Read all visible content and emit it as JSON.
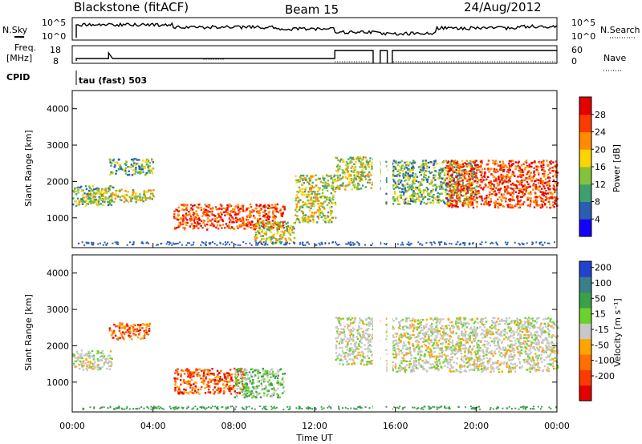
{
  "header": {
    "station": "Blackstone (fitACF)",
    "beam": "Beam 15",
    "date": "24/Aug/2012"
  },
  "params": {
    "nsky_label": "N.Sky",
    "nsearch_label": "N.Search",
    "freq_label_1": "Freq.",
    "freq_label_2": "[MHz]",
    "nave_label": "Nave",
    "cpid_label": "CPID",
    "cpid_value": "tau (fast) 503",
    "noise_ticks_left": [
      "10^5",
      "10^0"
    ],
    "noise_ticks_right": [
      "10^5",
      "10^0"
    ],
    "freq_ticks_left": [
      "18",
      "8"
    ],
    "nave_ticks_right": [
      "60",
      "0"
    ]
  },
  "chart_data": [
    {
      "type": "heatmap",
      "panel": "power",
      "ylabel": "Slant Range [km]",
      "xlabel": "Time UT",
      "x_ticks": [
        "00:00",
        "04:00",
        "08:00",
        "12:00",
        "16:00",
        "20:00",
        "00:00"
      ],
      "x_range_hours": [
        0,
        24
      ],
      "y_ticks": [
        "1000",
        "2000",
        "3000",
        "4000"
      ],
      "y_range_km": [
        180,
        4500
      ],
      "colorbar": {
        "label": "Power [dB]",
        "ticks": [
          "4",
          "8",
          "12",
          "16",
          "20",
          "24",
          "28"
        ],
        "colors": [
          "#1400ff",
          "#2a5fb0",
          "#3f9f6f",
          "#84c23c",
          "#ffd400",
          "#ff8c00",
          "#ff3a00",
          "#e50000"
        ]
      },
      "features": [
        {
          "t": [
            0.0,
            2.0
          ],
          "range_km": [
            1350,
            1900
          ],
          "level": "green"
        },
        {
          "t": [
            0.3,
            1.0
          ],
          "range_km": [
            1450,
            1650
          ],
          "level": "orange"
        },
        {
          "t": [
            1.0,
            4.0
          ],
          "range_km": [
            1450,
            1800
          ],
          "level": "orange"
        },
        {
          "t": [
            1.8,
            4.0
          ],
          "range_km": [
            2200,
            2650
          ],
          "level": "green"
        },
        {
          "t": [
            5.0,
            10.5
          ],
          "range_km": [
            700,
            1400
          ],
          "level": "red"
        },
        {
          "t": [
            9.0,
            11.0
          ],
          "range_km": [
            300,
            900
          ],
          "level": "orange"
        },
        {
          "t": [
            11.0,
            13.0
          ],
          "range_km": [
            900,
            2200
          ],
          "level": "orange"
        },
        {
          "t": [
            13.0,
            15.2
          ],
          "range_km": [
            1800,
            2700
          ],
          "level": "orange"
        },
        {
          "t": [
            15.5,
            20.0
          ],
          "range_km": [
            1400,
            2600
          ],
          "level": "green"
        },
        {
          "t": [
            18.5,
            24.0
          ],
          "range_km": [
            1300,
            2600
          ],
          "level": "red"
        }
      ]
    },
    {
      "type": "heatmap",
      "panel": "velocity",
      "ylabel": "Slant Range [km]",
      "xlabel": "Time UT",
      "x_ticks": [
        "00:00",
        "04:00",
        "08:00",
        "12:00",
        "16:00",
        "20:00",
        "00:00"
      ],
      "x_range_hours": [
        0,
        24
      ],
      "y_ticks": [
        "1000",
        "2000",
        "3000",
        "4000"
      ],
      "y_range_km": [
        180,
        4500
      ],
      "colorbar": {
        "label": "Velocity [m s⁻¹]",
        "ticks": [
          "200",
          "100",
          "50",
          "15",
          "-15",
          "-50",
          "-100",
          "-200"
        ],
        "colors": [
          "#2244cc",
          "#3a7f8a",
          "#3ca046",
          "#6bd12d",
          "#c8c8c8",
          "#ffa500",
          "#ff7000",
          "#ff3a00",
          "#e50000"
        ]
      },
      "features": [
        {
          "t": [
            0.0,
            2.0
          ],
          "range_km": [
            1350,
            1900
          ],
          "level": "grey"
        },
        {
          "t": [
            1.8,
            3.8
          ],
          "range_km": [
            2200,
            2650
          ],
          "level": "orange"
        },
        {
          "t": [
            5.0,
            8.5
          ],
          "range_km": [
            700,
            1400
          ],
          "level": "orange"
        },
        {
          "t": [
            8.0,
            10.5
          ],
          "range_km": [
            600,
            1400
          ],
          "level": "green"
        },
        {
          "t": [
            13.0,
            15.2
          ],
          "range_km": [
            1500,
            2800
          ],
          "level": "grey"
        },
        {
          "t": [
            15.5,
            24.0
          ],
          "range_km": [
            1300,
            2800
          ],
          "level": "grey"
        }
      ]
    }
  ]
}
